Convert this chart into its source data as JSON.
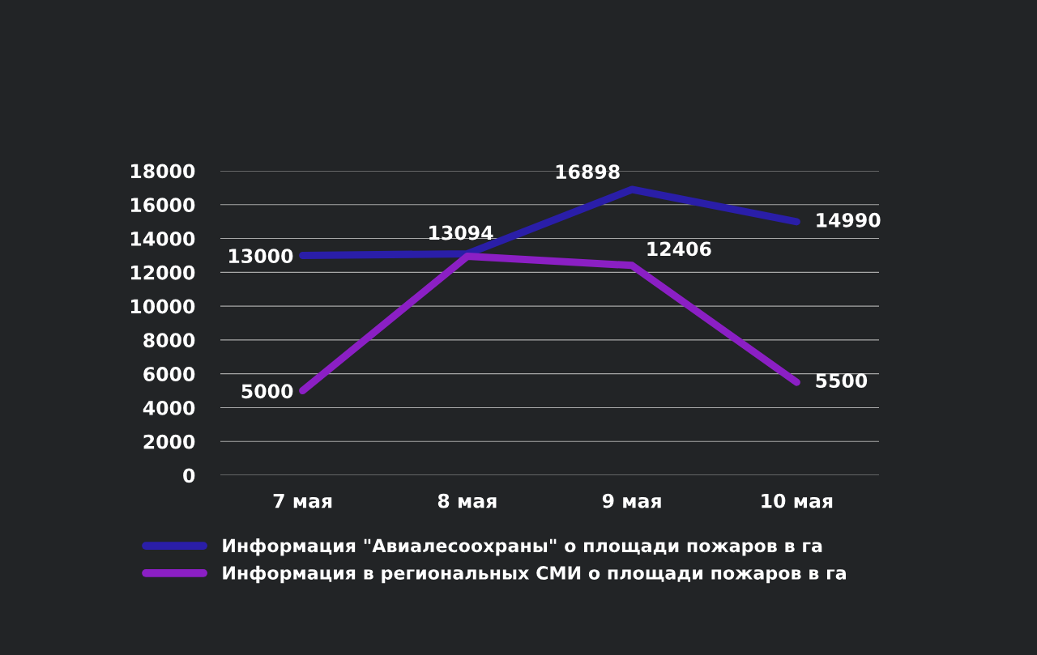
{
  "chart_data": {
    "type": "line",
    "categories": [
      "7 мая",
      "8 мая",
      "9 мая",
      "10 мая"
    ],
    "series": [
      {
        "name": "Информация \"Авиалесоохраны\" о площади пожаров в га",
        "color": "#2a1ea8",
        "values": [
          13000,
          13094,
          16898,
          14990
        ],
        "value_labels": [
          "13000",
          "13094",
          "16898",
          "14990"
        ]
      },
      {
        "name": "Информация в региональных СМИ о площади пожаров в га",
        "color": "#8b1fc4",
        "values": [
          5000,
          12950,
          12406,
          5500
        ],
        "value_labels": [
          "5000",
          null,
          "12406",
          "5500"
        ]
      }
    ],
    "ylim": [
      0,
      18000
    ],
    "yticks": [
      0,
      2000,
      4000,
      6000,
      8000,
      10000,
      12000,
      14000,
      16000,
      18000
    ],
    "grid": "y",
    "legend": "bottom",
    "marker": "none",
    "line_style": "solid"
  }
}
